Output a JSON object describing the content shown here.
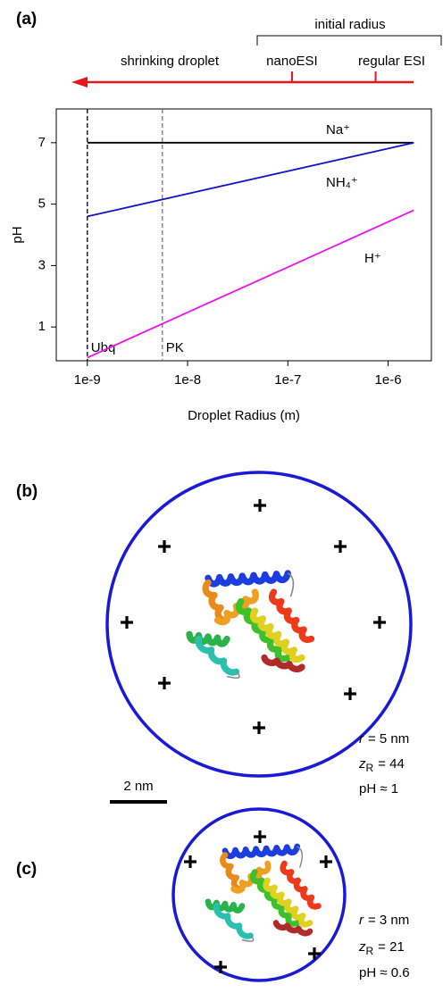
{
  "chart_data": {
    "type": "line",
    "panel_label": "(a)",
    "xlabel": "Droplet Radius (m)",
    "ylabel": "pH",
    "xscale": "log",
    "xlim": [
      4.9e-10,
      2.7e-06
    ],
    "ylim": [
      -0.1,
      8.1
    ],
    "xticks": [
      {
        "value": 1e-09,
        "label": "1e-9"
      },
      {
        "value": 1e-08,
        "label": "1e-8"
      },
      {
        "value": 1e-07,
        "label": "1e-7"
      },
      {
        "value": 1e-06,
        "label": "1e-6"
      }
    ],
    "yticks": [
      1,
      3,
      5,
      7
    ],
    "series": [
      {
        "name": "Na⁺",
        "color": "#000000",
        "x": [
          1e-09,
          1.8e-06
        ],
        "values": [
          7,
          7
        ]
      },
      {
        "name": "NH₄⁺",
        "color": "#1414c8",
        "x": [
          1e-09,
          1.8e-06
        ],
        "values": [
          4.6,
          7
        ]
      },
      {
        "name": "H⁺",
        "color": "#ee11ee",
        "x": [
          1e-09,
          1.8e-06
        ],
        "values": [
          0,
          4.8
        ]
      }
    ],
    "reference_lines": [
      {
        "x": 1e-09,
        "label": "Ubq",
        "color": "#000000"
      },
      {
        "x": 5.6e-09,
        "label": "PK",
        "color": "#777777"
      }
    ],
    "top_annotation": {
      "arrow_label": "shrinking droplet",
      "arrow_color": "#e8161b",
      "bracket_label": "initial radius",
      "marks": [
        {
          "x": 1.1e-07,
          "label": "nanoESI"
        },
        {
          "x": 7.5e-07,
          "label": "regular ESI"
        }
      ]
    }
  },
  "panels": [
    {
      "label": "(b)",
      "radius": {
        "var": "r",
        "text": "= 5 nm"
      },
      "charge": {
        "var": "z",
        "sub": "R",
        "text": "= 44"
      },
      "ph": "pH ≈ 1"
    },
    {
      "label": "(c)",
      "radius": {
        "var": "r",
        "text": "= 3 nm"
      },
      "charge": {
        "var": "z",
        "sub": "R",
        "text": "= 21"
      },
      "ph": "pH ≈ 0.6"
    }
  ],
  "scale_bar": "2 nm"
}
